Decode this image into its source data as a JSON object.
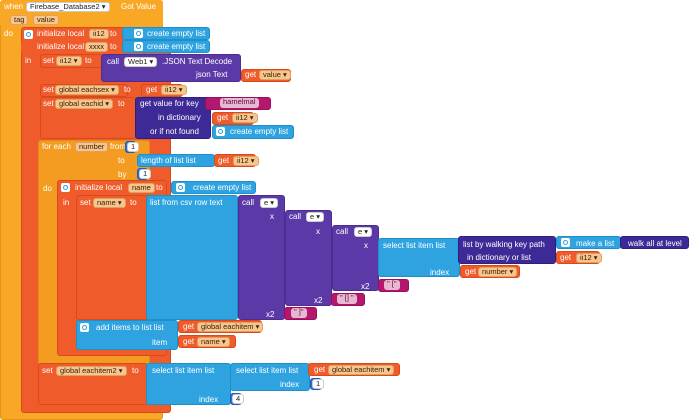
{
  "event": {
    "when": "when",
    "component": "Firebase_Database2",
    "event_name": "Got Value",
    "param_tag": "tag",
    "param_value": "value",
    "do": "do"
  },
  "kw": {
    "init_local": "initialize local",
    "to": "to",
    "in": "in",
    "create_empty_list": "create empty list",
    "set": "set",
    "call": "call",
    "json_decode": ".JSON Text Decode",
    "json_text": "json Text",
    "get": "get",
    "get_value_for_key": "get value for key",
    "in_dictionary": "in dictionary",
    "or_if_not_found": "or if not found",
    "for_each": "for each",
    "from": "from",
    "by": "by",
    "length_of_list": "length of list  list",
    "list_from_csv": "list from csv row  text",
    "x": "x",
    "select_list_item": "select list item  list",
    "index": "index",
    "list_by_walking": "list by walking key path",
    "in_dict_or_list": "in dictionary or list",
    "make_a_list": "make a list",
    "walk_all": "walk all at level",
    "x2": "x2",
    "add_items": "add items to list  list",
    "item": "item"
  },
  "vars": {
    "ii12": "ii12",
    "xxxx": "xxxx",
    "value": "value",
    "global_eachsex": "global eachsex",
    "global_eachid": "global eachid",
    "number": "number",
    "name": "name",
    "global_eachitem": "global eachitem",
    "global_eachitem2": "global eachitem2"
  },
  "web": {
    "component": "Web1"
  },
  "strings": {
    "hamelmal": "hamelmal",
    "quote_empty": "\" \"",
    "quote_brackets": "\" [] \"",
    "quote_open": "\" [\"",
    "quote_close": "\" ]\" "
  },
  "math": {
    "one": "1",
    "four": "4"
  },
  "icons": {
    "gear": "gear-icon",
    "dropdown": "chevron-down-icon"
  },
  "colors": {
    "event": "#f9a825",
    "variable": "#ef5b2a",
    "list": "#2ea3e0",
    "dictionary": "#3e2a96",
    "text": "#b3176e",
    "math": "#2d6fd1",
    "procedure": "#5b3aa8"
  }
}
